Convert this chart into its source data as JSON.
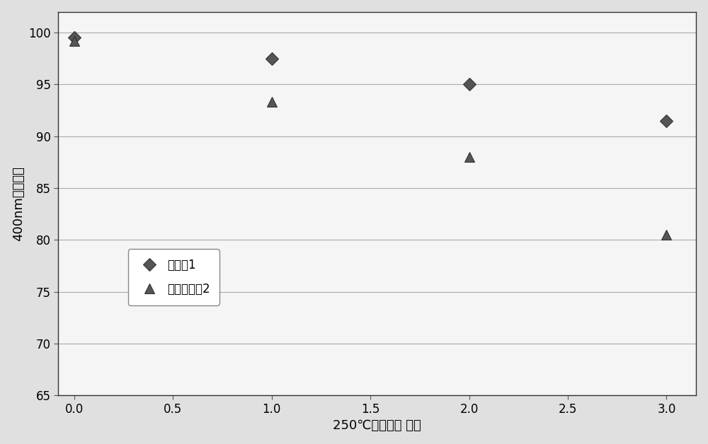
{
  "series1": {
    "label": "参考例1",
    "x": [
      0,
      1,
      2,
      3
    ],
    "y": [
      99.5,
      97.5,
      95.0,
      91.5
    ],
    "marker": "D",
    "markersize": 9
  },
  "series2": {
    "label": "比较参考例2",
    "x": [
      0,
      1,
      2,
      3
    ],
    "y": [
      99.2,
      93.3,
      88.0,
      80.5
    ],
    "marker": "^",
    "markersize": 10
  },
  "xlabel": "250℃加热时间 小时",
  "ylabel": "400nm透过率％",
  "xlim": [
    -0.08,
    3.15
  ],
  "ylim": [
    65,
    102
  ],
  "xticks": [
    0.0,
    0.5,
    1.0,
    1.5,
    2.0,
    2.5,
    3.0
  ],
  "yticks": [
    65,
    70,
    75,
    80,
    85,
    90,
    95,
    100
  ],
  "marker_color": "#555555",
  "marker_edge_color": "#333333",
  "line_color": "#777777",
  "bg_color": "#e0e0e0",
  "plot_bg_color": "#f5f5f5",
  "grid_color": "#aaaaaa",
  "label_fontsize": 13,
  "tick_fontsize": 12,
  "legend_fontsize": 12
}
